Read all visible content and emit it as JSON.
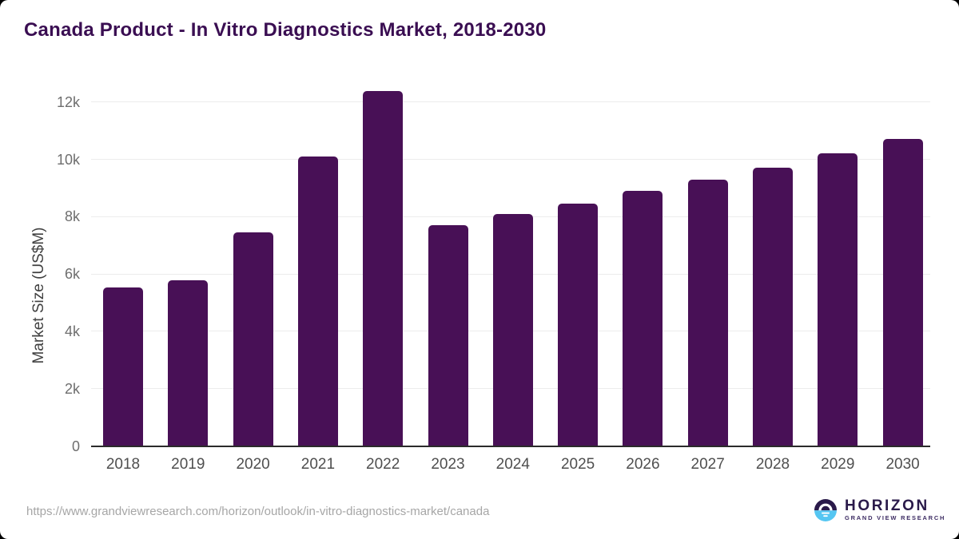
{
  "header": {
    "title": "Canada Product - In Vitro Diagnostics Market, 2018-2030",
    "title_color": "#3A0E52"
  },
  "chart_data": {
    "type": "bar",
    "title": "Canada Product - In Vitro Diagnostics Market, 2018-2030",
    "categories": [
      "2018",
      "2019",
      "2020",
      "2021",
      "2022",
      "2023",
      "2024",
      "2025",
      "2026",
      "2027",
      "2028",
      "2029",
      "2030"
    ],
    "values": [
      5520,
      5770,
      7460,
      10100,
      12390,
      7710,
      8090,
      8460,
      8890,
      9290,
      9700,
      10210,
      10700
    ],
    "xlabel": "",
    "ylabel": "Market Size (US$M)",
    "ylim": [
      0,
      12800
    ],
    "ytick_values": [
      0,
      2000,
      4000,
      6000,
      8000,
      10000,
      12000
    ],
    "ytick_labels": [
      "0",
      "2k",
      "4k",
      "6k",
      "8k",
      "10k",
      "12k"
    ],
    "grid": "horizontal-light",
    "legend": "none",
    "bar_color": "#481056",
    "gridline_color": "#ececec",
    "axis_color": "#2b2b2b"
  },
  "footer": {
    "source_url": "https://www.grandviewresearch.com/horizon/outlook/in-vitro-diagnostics-market/canada",
    "logo": {
      "name": "HORIZON",
      "tagline": "GRAND VIEW RESEARCH",
      "icon": "horizon-sunset-icon",
      "purple": "#2A1A4A",
      "blue": "#55C6F2"
    }
  }
}
